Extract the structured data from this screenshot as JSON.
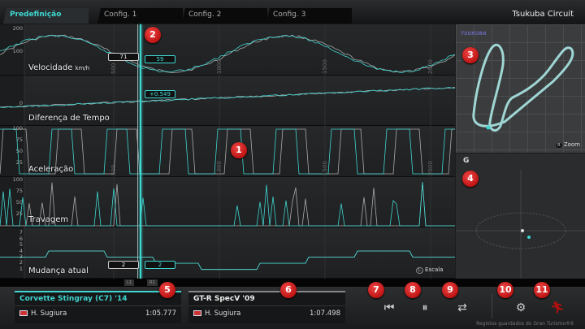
{
  "tabs": [
    "Predefinição",
    "Config. 1",
    "Config. 2",
    "Config. 3"
  ],
  "track": "Tsukuba Circuit",
  "rows": [
    {
      "label": "Velocidade",
      "unit": "km/h",
      "ticks": [
        "200",
        "100"
      ]
    },
    {
      "label": "Diferença de Tempo",
      "unit": "",
      "ticks": [
        "0"
      ]
    },
    {
      "label": "Aceleração",
      "unit": "",
      "ticks": [
        "100",
        "75",
        "50",
        "25"
      ]
    },
    {
      "label": "Travagem",
      "unit": "",
      "ticks": [
        "100",
        "75",
        "50",
        "25"
      ]
    },
    {
      "label": "Mudança atual",
      "unit": "",
      "ticks": [
        "7",
        "6",
        "5",
        "4",
        "3",
        "2",
        "1"
      ]
    }
  ],
  "distance_ticks": [
    "500",
    "1000",
    "1500",
    "2000"
  ],
  "cursor_values": {
    "speed_ref": "71",
    "speed_cur": "59",
    "time_diff": "+0.549",
    "gear_ref": "2",
    "gear_cur": "2"
  },
  "buttons": {
    "l1": "L1",
    "r1": "R1",
    "zoom": "Zoom",
    "scale": "Escala",
    "zoom_key": "R",
    "scale_key": "L"
  },
  "g_label": "G",
  "copyright": "Registos guardados do Gran Turismo®6",
  "cars": [
    {
      "name": "Corvette Stingray (C7) '14",
      "driver": "H. Sugiura",
      "time": "1:05.777"
    },
    {
      "name": "GT-R SpecV '09",
      "driver": "H. Sugiura",
      "time": "1:07.498"
    }
  ],
  "badges": [
    "1",
    "2",
    "3",
    "4",
    "5",
    "6",
    "7",
    "8",
    "9",
    "10",
    "11"
  ],
  "colors": {
    "accent": "#3fd6d0",
    "reference": "#aaaaaa",
    "badge": "#cc1111",
    "exit": "#b01010"
  }
}
